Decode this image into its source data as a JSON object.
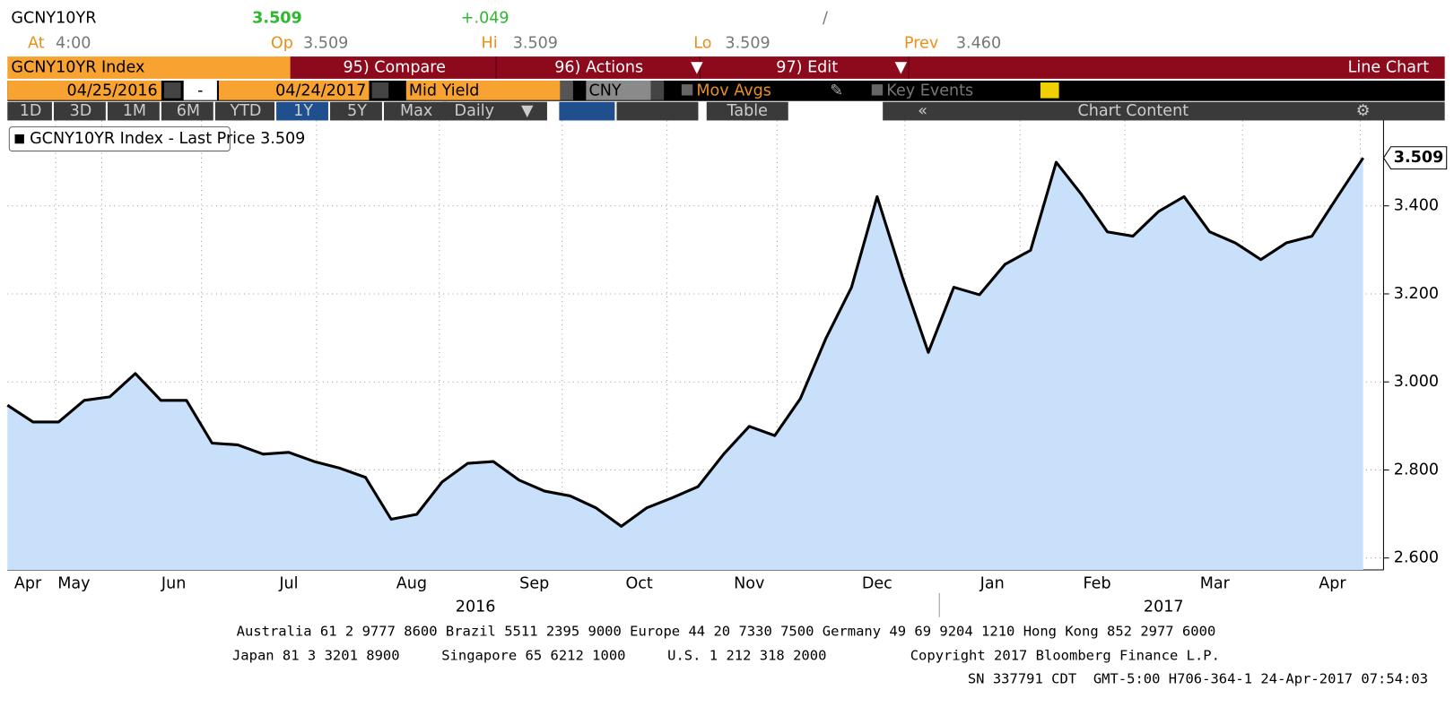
{
  "header": {
    "ticker": "GCNY10YR",
    "last": "3.509",
    "change": "+.049",
    "slash": "/",
    "at_label": "At",
    "at": "4:00",
    "op_label": "Op",
    "op": "3.509",
    "hi_label": "Hi",
    "hi": "3.509",
    "lo_label": "Lo",
    "lo": "3.509",
    "prev_label": "Prev",
    "prev": "3.460"
  },
  "toolbar": {
    "security": "GCNY10YR Index",
    "compare": "95) Compare",
    "actions": "96) Actions",
    "edit": "97) Edit",
    "view": "Line Chart",
    "start": "04/25/2016",
    "dash": "-",
    "end": "04/24/2017",
    "field": "Mid Yield",
    "currency": "CNY",
    "mov_avgs": "Mov Avgs",
    "key_events": "Key Events",
    "periods": [
      "1D",
      "3D",
      "1M",
      "6M",
      "YTD",
      "1Y",
      "5Y",
      "Max"
    ],
    "frequency": "Daily",
    "table": "Table",
    "chart_content": "Chart Content"
  },
  "chart_data": {
    "type": "line",
    "series": [
      {
        "name": "GCNY10YR Index - Last Price 3.509",
        "color": "#000000",
        "fill": "#c9e0fb",
        "values": [
          2.947,
          2.909,
          2.909,
          2.958,
          2.966,
          3.019,
          2.958,
          2.958,
          2.861,
          2.857,
          2.836,
          2.84,
          2.819,
          2.804,
          2.783,
          2.688,
          2.699,
          2.773,
          2.815,
          2.819,
          2.777,
          2.752,
          2.741,
          2.714,
          2.672,
          2.714,
          2.737,
          2.762,
          2.836,
          2.899,
          2.878,
          2.962,
          3.099,
          3.215,
          3.421,
          3.236,
          3.067,
          3.215,
          3.198,
          3.267,
          3.299,
          3.499,
          3.425,
          3.341,
          3.331,
          3.387,
          3.421,
          3.341,
          3.316,
          3.278,
          3.316,
          3.331,
          3.421,
          3.509
        ]
      }
    ],
    "xlim": [
      0,
      53
    ],
    "xticks": [
      {
        "value": 0.8,
        "label": "Apr"
      },
      {
        "value": 2.6,
        "label": "May"
      },
      {
        "value": 6.5,
        "label": "Jun"
      },
      {
        "value": 11,
        "label": "Jul"
      },
      {
        "value": 15.8,
        "label": "Aug"
      },
      {
        "value": 20.6,
        "label": "Sep"
      },
      {
        "value": 24.7,
        "label": "Oct"
      },
      {
        "value": 29,
        "label": "Nov"
      },
      {
        "value": 34,
        "label": "Dec"
      },
      {
        "value": 38.5,
        "label": "Jan"
      },
      {
        "value": 42.6,
        "label": "Feb"
      },
      {
        "value": 47.2,
        "label": "Mar"
      },
      {
        "value": 51.8,
        "label": "Apr"
      }
    ],
    "years": [
      {
        "value": 18.3,
        "label": "2016"
      },
      {
        "value": 45.2,
        "label": "2017"
      }
    ],
    "ylim": [
      2.573,
      3.594
    ],
    "yticks": [
      {
        "value": 2.6,
        "label": "2.600"
      },
      {
        "value": 2.8,
        "label": "2.800"
      },
      {
        "value": 3.0,
        "label": "3.000"
      },
      {
        "value": 3.2,
        "label": "3.200"
      },
      {
        "value": 3.4,
        "label": "3.400"
      }
    ],
    "grid": true
  },
  "footer": [
    "Australia 61 2 9777 8600 Brazil 5511 2395 9000 Europe 44 20 7330 7500 Germany 49 69 9204 1210 Hong Kong 852 2977 6000",
    "Japan 81 3 3201 8900     Singapore 65 6212 1000     U.S. 1 212 318 2000          Copyright 2017 Bloomberg Finance L.P.",
    "SN 337791 CDT  GMT-5:00 H706-364-1 24-Apr-2017 07:54:03"
  ]
}
